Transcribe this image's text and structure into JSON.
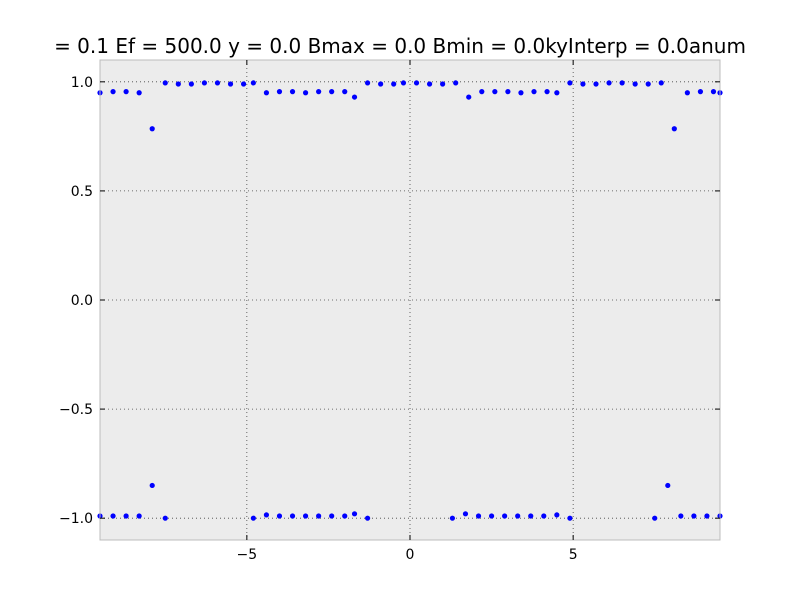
{
  "chart_data": {
    "type": "scatter",
    "title": "= 0.1 Ef = 500.0 y = 0.0 Bmax = 0.0 Bmin = 0.0kyInterp = 0.0anum",
    "xlabel": "",
    "ylabel": "",
    "xlim": [
      -9.5,
      9.5
    ],
    "ylim": [
      -1.1,
      1.1
    ],
    "x_ticks": [
      -5,
      0,
      5
    ],
    "x_tick_labels": [
      "−5",
      "0",
      "5"
    ],
    "y_ticks": [
      1.0,
      0.5,
      0.0,
      -0.5,
      -1.0
    ],
    "y_tick_labels": [
      "1.0",
      "0.5",
      "0.0",
      "−0.5",
      "−1.0"
    ],
    "grid": true,
    "marker_color": "#0000ff",
    "plot_background": "#ececec",
    "series": [
      {
        "x": [
          -9.5,
          -9.1,
          -8.7,
          -8.3,
          -7.9,
          -7.5,
          -7.1,
          -6.7,
          -6.3,
          -5.9,
          -5.5,
          -5.1,
          -4.8,
          -4.4,
          -4.0,
          -3.6,
          -3.2,
          -2.8,
          -2.4,
          -2.0,
          -1.7,
          -1.3,
          -0.9,
          -0.5,
          -0.2,
          0.2,
          0.6,
          1.0,
          1.4,
          1.8,
          2.2,
          2.6,
          3.0,
          3.4,
          3.8,
          4.2,
          4.5,
          4.9,
          5.3,
          5.7,
          6.1,
          6.5,
          6.9,
          7.3,
          7.7,
          8.1,
          8.5,
          8.9,
          9.3,
          9.5
        ],
        "y": [
          0.95,
          0.955,
          0.955,
          0.95,
          0.785,
          0.995,
          0.99,
          0.99,
          0.995,
          0.995,
          0.99,
          0.99,
          0.995,
          0.95,
          0.955,
          0.955,
          0.95,
          0.955,
          0.955,
          0.955,
          0.93,
          0.995,
          0.99,
          0.99,
          0.995,
          0.995,
          0.99,
          0.99,
          0.995,
          0.93,
          0.955,
          0.955,
          0.955,
          0.95,
          0.955,
          0.955,
          0.95,
          0.995,
          0.99,
          0.99,
          0.995,
          0.995,
          0.99,
          0.99,
          0.995,
          0.785,
          0.95,
          0.955,
          0.955,
          0.95
        ]
      },
      {
        "x": [
          -9.5,
          -9.1,
          -8.7,
          -8.3,
          -7.9,
          -7.5,
          -4.8,
          -4.4,
          -4.0,
          -3.6,
          -3.2,
          -2.8,
          -2.4,
          -2.0,
          -1.7,
          -1.3,
          1.3,
          1.7,
          2.1,
          2.5,
          2.9,
          3.3,
          3.7,
          4.1,
          4.5,
          4.9,
          7.5,
          7.9,
          8.3,
          8.7,
          9.1,
          9.5
        ],
        "y": [
          -0.99,
          -0.99,
          -0.99,
          -0.99,
          -0.85,
          -1.0,
          -1.0,
          -0.985,
          -0.99,
          -0.99,
          -0.99,
          -0.99,
          -0.99,
          -0.99,
          -0.98,
          -1.0,
          -1.0,
          -0.98,
          -0.99,
          -0.99,
          -0.99,
          -0.99,
          -0.99,
          -0.99,
          -0.985,
          -1.0,
          -1.0,
          -0.85,
          -0.99,
          -0.99,
          -0.99,
          -0.99
        ]
      }
    ]
  }
}
